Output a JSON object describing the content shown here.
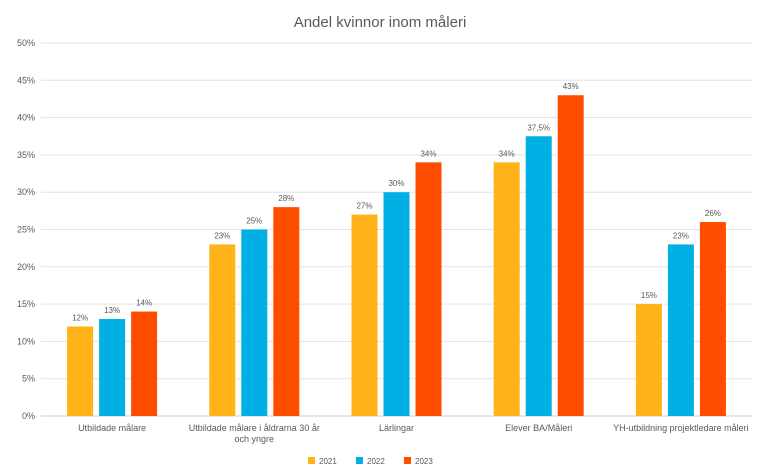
{
  "chart_data": {
    "type": "bar",
    "title": "Andel kvinnor inom måleri",
    "xlabel": "",
    "ylabel": "",
    "ylim": [
      0,
      50
    ],
    "yticks": [
      0,
      5,
      10,
      15,
      20,
      25,
      30,
      35,
      40,
      45,
      50
    ],
    "ytick_suffix": "%",
    "grid": true,
    "legend_position": "bottom",
    "categories": [
      "Utbildade målare",
      "Utbildade målare i åldrarna 30 år och yngre",
      "Lärlingar",
      "Elever BA/Måleri",
      "YH-utbildning projektledare måleri"
    ],
    "series": [
      {
        "name": "2021",
        "color": "#FFB319",
        "values": [
          12,
          23,
          27,
          34,
          15
        ],
        "labels": [
          "12%",
          "23%",
          "27%",
          "34%",
          "15%"
        ]
      },
      {
        "name": "2022",
        "color": "#00B0E4",
        "values": [
          13,
          25,
          30,
          37.5,
          23
        ],
        "labels": [
          "13%",
          "25%",
          "30%",
          "37,5%",
          "23%"
        ]
      },
      {
        "name": "2023",
        "color": "#FF4D00",
        "values": [
          14,
          28,
          34,
          43,
          26
        ],
        "labels": [
          "14%",
          "28%",
          "34%",
          "43%",
          "26%"
        ]
      }
    ]
  }
}
